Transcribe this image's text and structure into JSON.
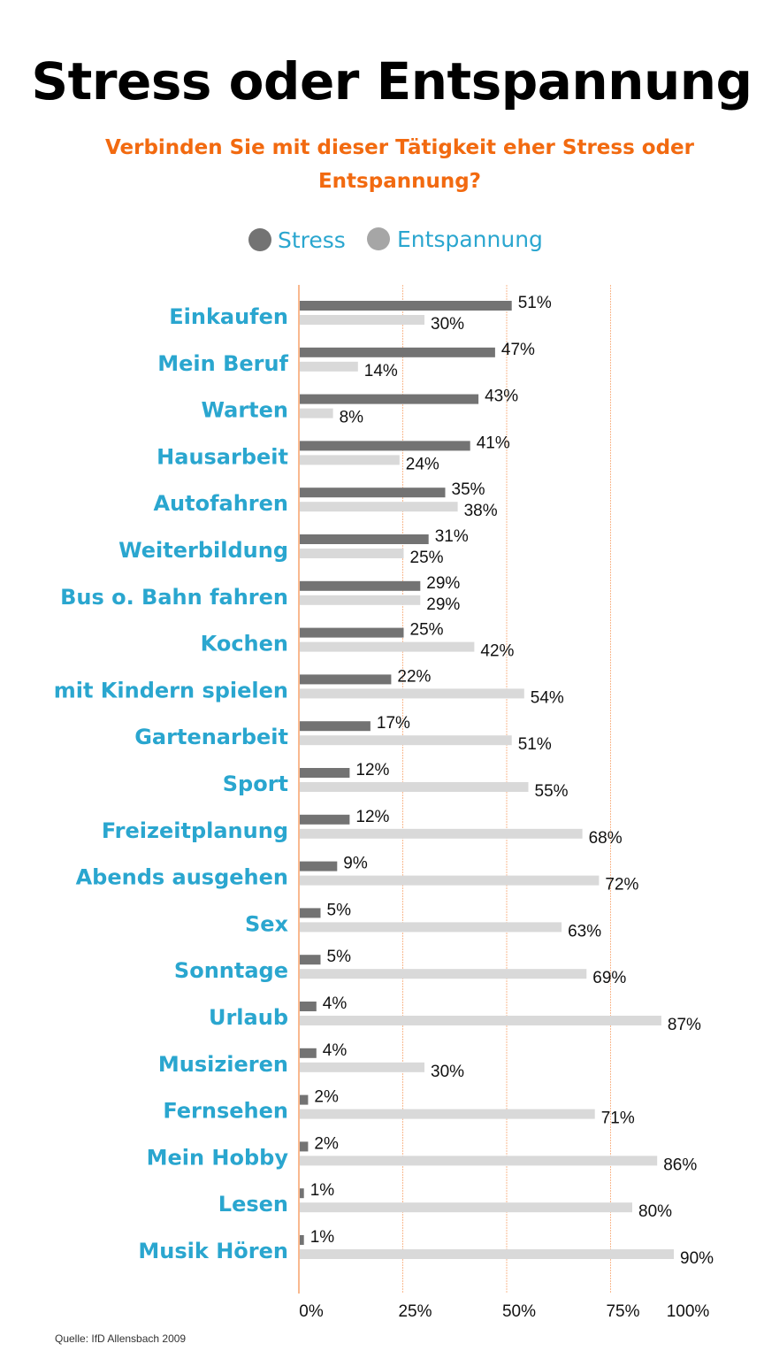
{
  "chart_data": {
    "type": "bar",
    "orientation": "horizontal",
    "title": "Stress oder Entspannung",
    "subtitle": "Verbinden Sie mit dieser Tätigkeit eher Stress oder Entspannung?",
    "source": "Quelle:  IfD Allensbach 2009",
    "categories": [
      "Einkaufen",
      "Mein Beruf",
      "Warten",
      "Hausarbeit",
      "Autofahren",
      "Weiterbildung",
      "Bus o. Bahn fahren",
      "Kochen",
      "mit Kindern spielen",
      "Gartenarbeit",
      "Sport",
      "Freizeitplanung",
      "Abends ausgehen",
      "Sex",
      "Sonntage",
      "Urlaub",
      "Musizieren",
      "Fernsehen",
      "Mein Hobby",
      "Lesen",
      "Musik Hören"
    ],
    "series": [
      {
        "name": "Stress",
        "color": "#737373",
        "values": [
          51,
          47,
          43,
          41,
          35,
          31,
          29,
          25,
          22,
          17,
          12,
          12,
          9,
          5,
          5,
          4,
          4,
          2,
          2,
          1,
          1
        ]
      },
      {
        "name": "Entspannung",
        "color": "#d9d9d9",
        "legend_color": "#a6a6a6",
        "values": [
          30,
          14,
          8,
          24,
          38,
          25,
          29,
          42,
          54,
          51,
          55,
          68,
          72,
          63,
          69,
          87,
          30,
          71,
          86,
          80,
          90
        ]
      }
    ],
    "xlim": [
      0,
      100
    ],
    "xticks": [
      "0%",
      "25%",
      "50%",
      "75%",
      "100%"
    ],
    "xtick_values": [
      0,
      25,
      50,
      75,
      100
    ],
    "grid": true,
    "grid_color": "#f9b98f",
    "label_color": "#2aa6cf",
    "legend_position": "top"
  }
}
